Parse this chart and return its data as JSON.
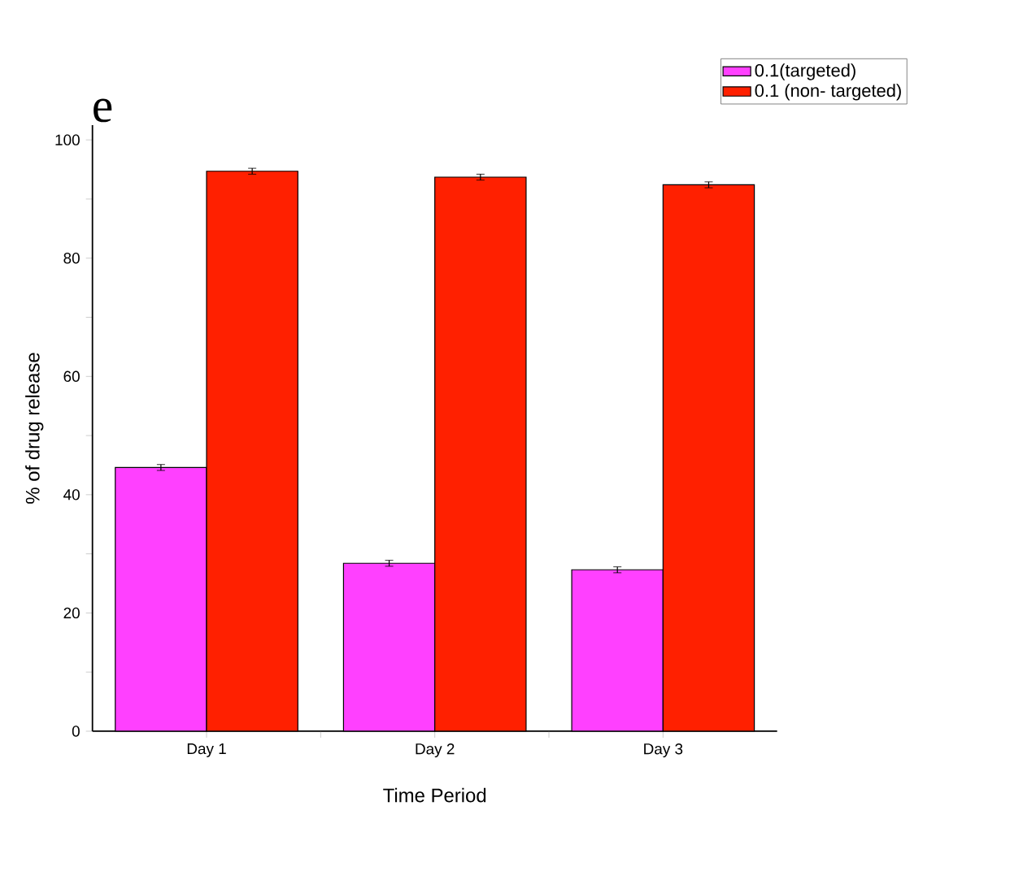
{
  "chart_data": {
    "type": "bar",
    "xlabel": "Time Period",
    "ylabel": "% of drug release",
    "categories": [
      "Day 1",
      "Day 2",
      "Day 3"
    ],
    "series": [
      {
        "name": "0.1(targeted)",
        "color": "#ff40ff",
        "values": [
          44.6,
          28.4,
          27.3
        ],
        "errors": [
          0.5,
          0.5,
          0.5
        ]
      },
      {
        "name": "0.1 (non- targeted)",
        "color": "#ff2000",
        "values": [
          94.7,
          93.7,
          92.4
        ],
        "errors": [
          0.5,
          0.5,
          0.5
        ]
      }
    ],
    "ylim": [
      0,
      102.5
    ],
    "yticks": [
      0,
      {
        "value": 10,
        "label": null
      },
      20,
      {
        "value": 30,
        "label": null
      },
      40,
      {
        "value": 50,
        "label": null
      },
      60,
      {
        "value": 70,
        "label": null
      },
      80,
      {
        "value": 90,
        "label": null
      },
      100
    ],
    "legend": "top right",
    "grid": false,
    "annotations": [
      "e"
    ]
  }
}
